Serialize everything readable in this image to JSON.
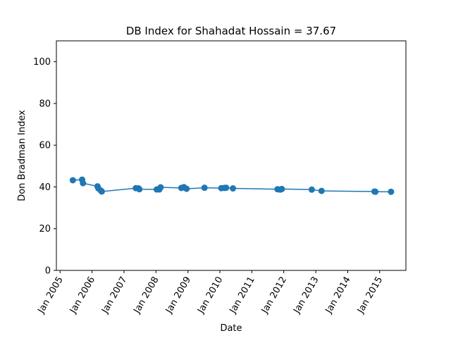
{
  "chart_data": {
    "type": "line",
    "title": "DB Index for Shahadat Hossain = 37.67",
    "xlabel": "Date",
    "ylabel": "Don Bradman Index",
    "ylim": [
      0,
      110
    ],
    "yticks": [
      0,
      20,
      40,
      60,
      80,
      100
    ],
    "xlim": [
      "2004-11-19",
      "2015-10-28"
    ],
    "xticks": [
      {
        "date": "2005-01-01",
        "label": "Jan 2005"
      },
      {
        "date": "2006-01-01",
        "label": "Jan 2006"
      },
      {
        "date": "2007-01-01",
        "label": "Jan 2007"
      },
      {
        "date": "2008-01-01",
        "label": "Jan 2008"
      },
      {
        "date": "2009-01-01",
        "label": "Jan 2009"
      },
      {
        "date": "2010-01-01",
        "label": "Jan 2010"
      },
      {
        "date": "2011-01-01",
        "label": "Jan 2011"
      },
      {
        "date": "2012-01-01",
        "label": "Jan 2012"
      },
      {
        "date": "2013-01-01",
        "label": "Jan 2013"
      },
      {
        "date": "2014-01-01",
        "label": "Jan 2014"
      },
      {
        "date": "2015-01-01",
        "label": "Jan 2015"
      }
    ],
    "grid": false,
    "color": "#1f77b4",
    "series": [
      {
        "x": [
          "2005-05-26",
          "2005-09-09",
          "2005-09-19",
          "2006-03-04",
          "2006-03-14",
          "2006-04-12",
          "2006-04-22",
          "2007-05-16",
          "2007-06-16",
          "2007-06-26",
          "2008-01-10",
          "2008-02-09",
          "2008-02-24",
          "2008-10-17",
          "2008-11-16",
          "2008-12-16",
          "2009-07-09",
          "2010-01-17",
          "2010-02-21",
          "2010-03-13",
          "2010-05-30",
          "2011-10-21",
          "2011-11-20",
          "2011-12-10",
          "2012-11-16",
          "2013-03-08",
          "2014-11-03",
          "2014-11-13",
          "2015-05-11"
        ],
        "y": [
          43.2,
          43.5,
          41.8,
          40.3,
          39.3,
          38.2,
          37.8,
          39.4,
          39.3,
          38.9,
          38.8,
          38.8,
          39.8,
          39.5,
          39.9,
          39.1,
          39.6,
          39.4,
          39.5,
          39.6,
          39.3,
          38.9,
          38.7,
          39.0,
          38.7,
          38.1,
          37.8,
          37.7,
          37.67
        ]
      }
    ]
  }
}
